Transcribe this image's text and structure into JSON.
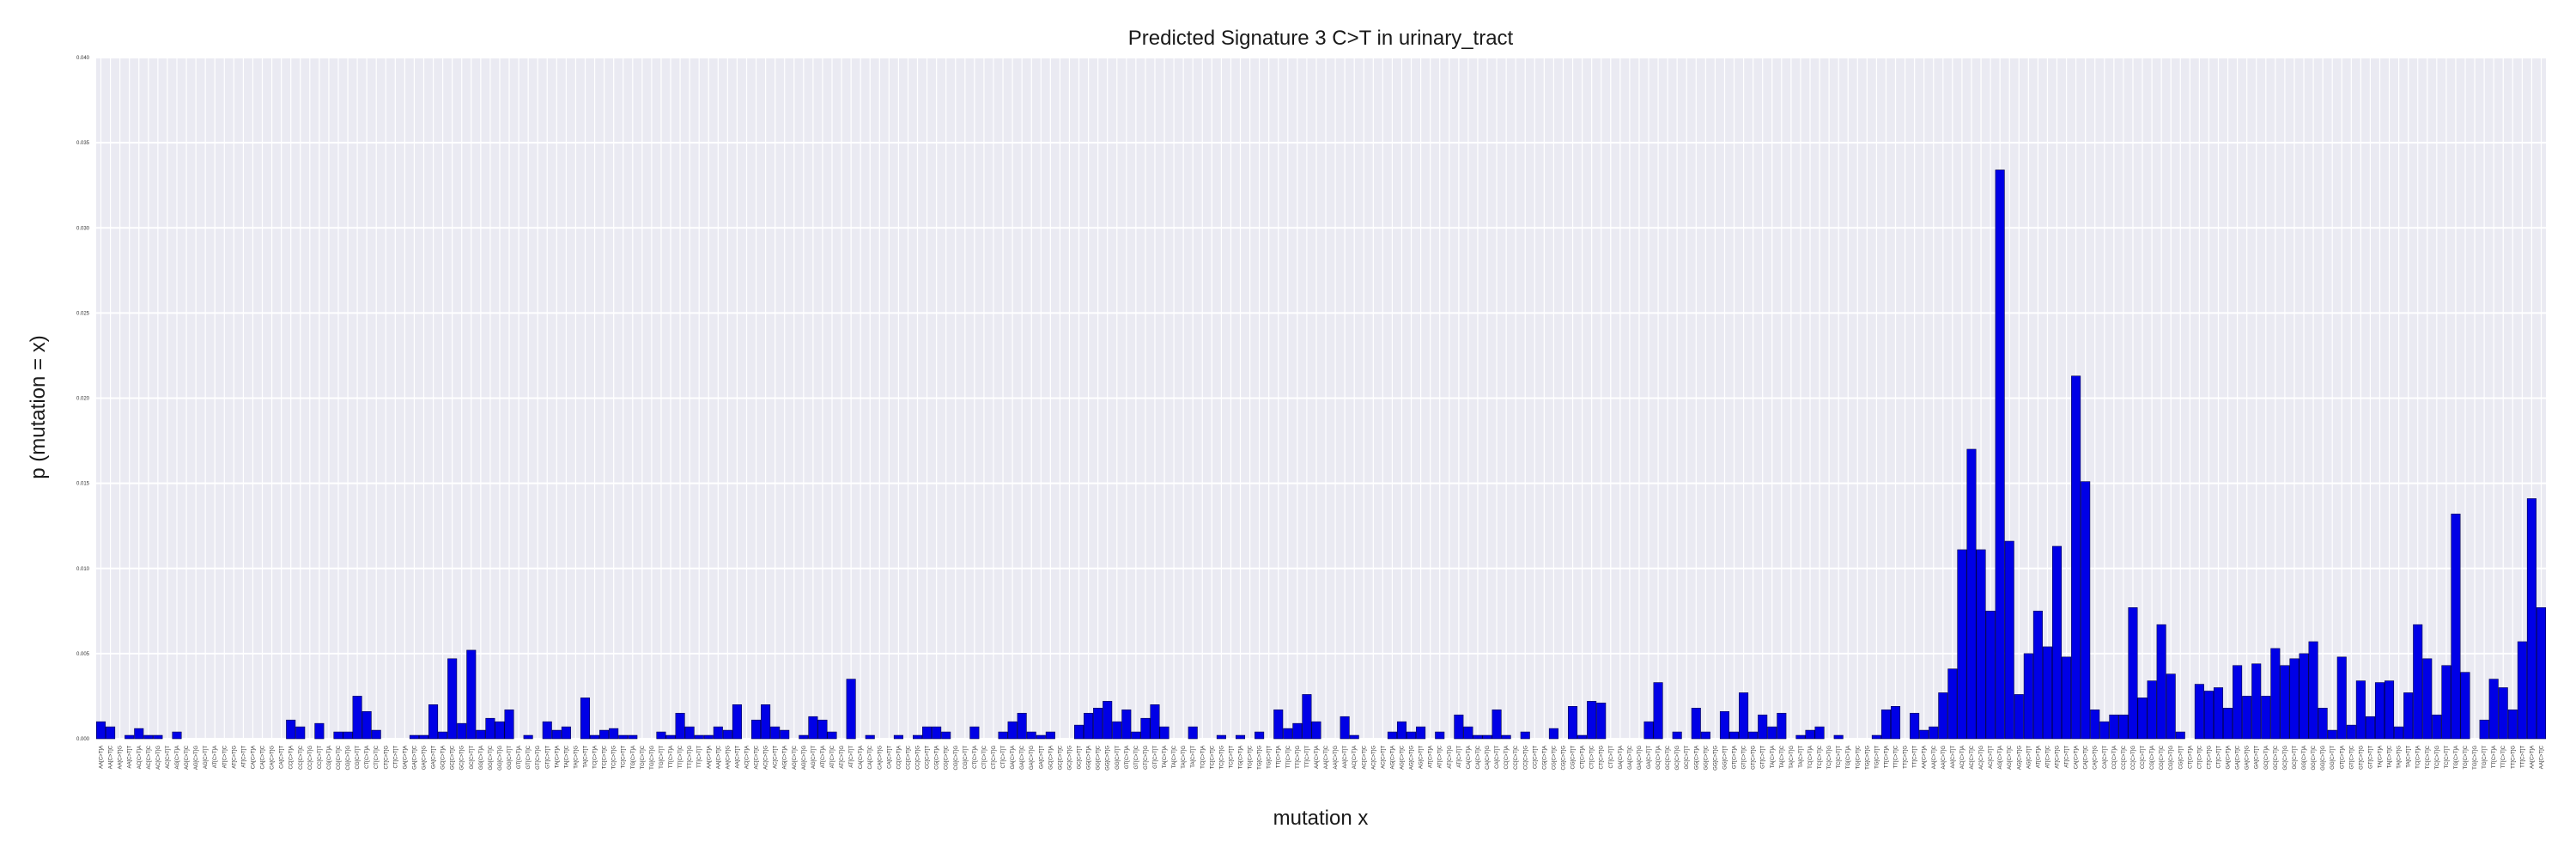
{
  "chart_data": {
    "type": "bar",
    "title": "Predicted Signature 3 C>T in urinary_tract",
    "xlabel": "mutation x",
    "ylabel": "p (mutation = x)",
    "ylim": [
      0,
      0.04
    ],
    "yticks": [
      "0.000",
      "0.005",
      "0.010",
      "0.015",
      "0.020",
      "0.025",
      "0.030",
      "0.035",
      "0.040"
    ],
    "grid": true,
    "bar_color": "#0000e6",
    "plot_background": "#eaeaf2",
    "prefixes": [
      "A",
      "C",
      "G",
      "T"
    ],
    "flank_prefixes": [
      "AA",
      "AC",
      "AG",
      "AT",
      "CA",
      "CC",
      "CG",
      "CT",
      "GA",
      "GC",
      "GG",
      "GT",
      "TA",
      "TC",
      "TG",
      "TT"
    ],
    "suffixes": [
      "A",
      "C",
      "G",
      "T"
    ],
    "mutation": "C>T",
    "values": [
      0.001,
      0.0007,
      0.0,
      0.0002,
      0.0006,
      0.0002,
      0.0002,
      0.0,
      0.0004,
      0.0,
      0.0,
      0.0,
      0.0,
      0.0,
      0.0,
      0.0,
      0.0,
      0.0,
      0.0,
      0.0,
      0.0011,
      0.0007,
      0.0,
      0.0009,
      0.0,
      0.0004,
      0.0004,
      0.0025,
      0.0016,
      0.0005,
      0.0,
      0.0,
      0.0,
      0.0002,
      0.0002,
      0.002,
      0.0004,
      0.0047,
      0.0009,
      0.0052,
      0.0005,
      0.0012,
      0.001,
      0.0017,
      0.0,
      0.0002,
      0.0,
      0.001,
      0.0005,
      0.0007,
      0.0,
      0.0024,
      0.0002,
      0.0005,
      0.0006,
      0.0002,
      0.0002,
      0.0,
      0.0,
      0.0004,
      0.0002,
      0.0015,
      0.0007,
      0.0002,
      0.0002,
      0.0007,
      0.0005,
      0.002,
      0.0,
      0.0011,
      0.002,
      0.0007,
      0.0005,
      0.0,
      0.0002,
      0.0013,
      0.0011,
      0.0004,
      0.0,
      0.0035,
      0.0,
      0.0002,
      0.0,
      0.0,
      0.0002,
      0.0,
      0.0002,
      0.0007,
      0.0007,
      0.0004,
      0.0,
      0.0,
      0.0007,
      0.0,
      0.0,
      0.0004,
      0.001,
      0.0015,
      0.0004,
      0.0002,
      0.0004,
      0.0,
      0.0,
      0.0008,
      0.0015,
      0.0018,
      0.0022,
      0.001,
      0.0017,
      0.0004,
      0.0012,
      0.002,
      0.0007,
      0.0,
      0.0,
      0.0007,
      0.0,
      0.0,
      0.0002,
      0.0,
      0.0002,
      0.0,
      0.0004,
      0.0,
      0.0017,
      0.0006,
      0.0009,
      0.0026,
      0.001,
      0.0,
      0.0,
      0.0013,
      0.0002,
      0.0,
      0.0,
      0.0,
      0.0004,
      0.001,
      0.0004,
      0.0007,
      0.0,
      0.0004,
      0.0,
      0.0014,
      0.0007,
      0.0002,
      0.0002,
      0.0017,
      0.0002,
      0.0,
      0.0004,
      0.0,
      0.0,
      0.0006,
      0.0,
      0.0019,
      0.0002,
      0.0022,
      0.0021,
      0.0,
      0.0,
      0.0,
      0.0,
      0.001,
      0.0033,
      0.0,
      0.0004,
      0.0,
      0.0018,
      0.0004,
      0.0,
      0.0016,
      0.0004,
      0.0027,
      0.0004,
      0.0014,
      0.0007,
      0.0015,
      0.0,
      0.0002,
      0.0005,
      0.0007,
      0.0,
      0.0002,
      0.0,
      0.0,
      0.0,
      0.0002,
      0.0017,
      0.0019,
      0.0,
      0.0015,
      0.0005,
      0.0007,
      0.0027,
      0.0041,
      0.0111,
      0.017,
      0.0111,
      0.0075,
      0.0334,
      0.0116,
      0.0026,
      0.005,
      0.0075,
      0.0054,
      0.0113,
      0.0048,
      0.0213,
      0.0151,
      0.0017,
      0.001,
      0.0014,
      0.0014,
      0.0077,
      0.0024,
      0.0034,
      0.0067,
      0.0038,
      0.0004,
      0.0,
      0.0032,
      0.0028,
      0.003,
      0.0018,
      0.0043,
      0.0025,
      0.0044,
      0.0025,
      0.0053,
      0.0043,
      0.0047,
      0.005,
      0.0057,
      0.0018,
      0.0005,
      0.0048,
      0.0008,
      0.0034,
      0.0013,
      0.0033,
      0.0034,
      0.0007,
      0.0027,
      0.0067,
      0.0047,
      0.0014,
      0.0043,
      0.0132,
      0.0039,
      0.0,
      0.0011,
      0.0035,
      0.003,
      0.0017,
      0.0057,
      0.0141,
      0.0077
    ]
  }
}
